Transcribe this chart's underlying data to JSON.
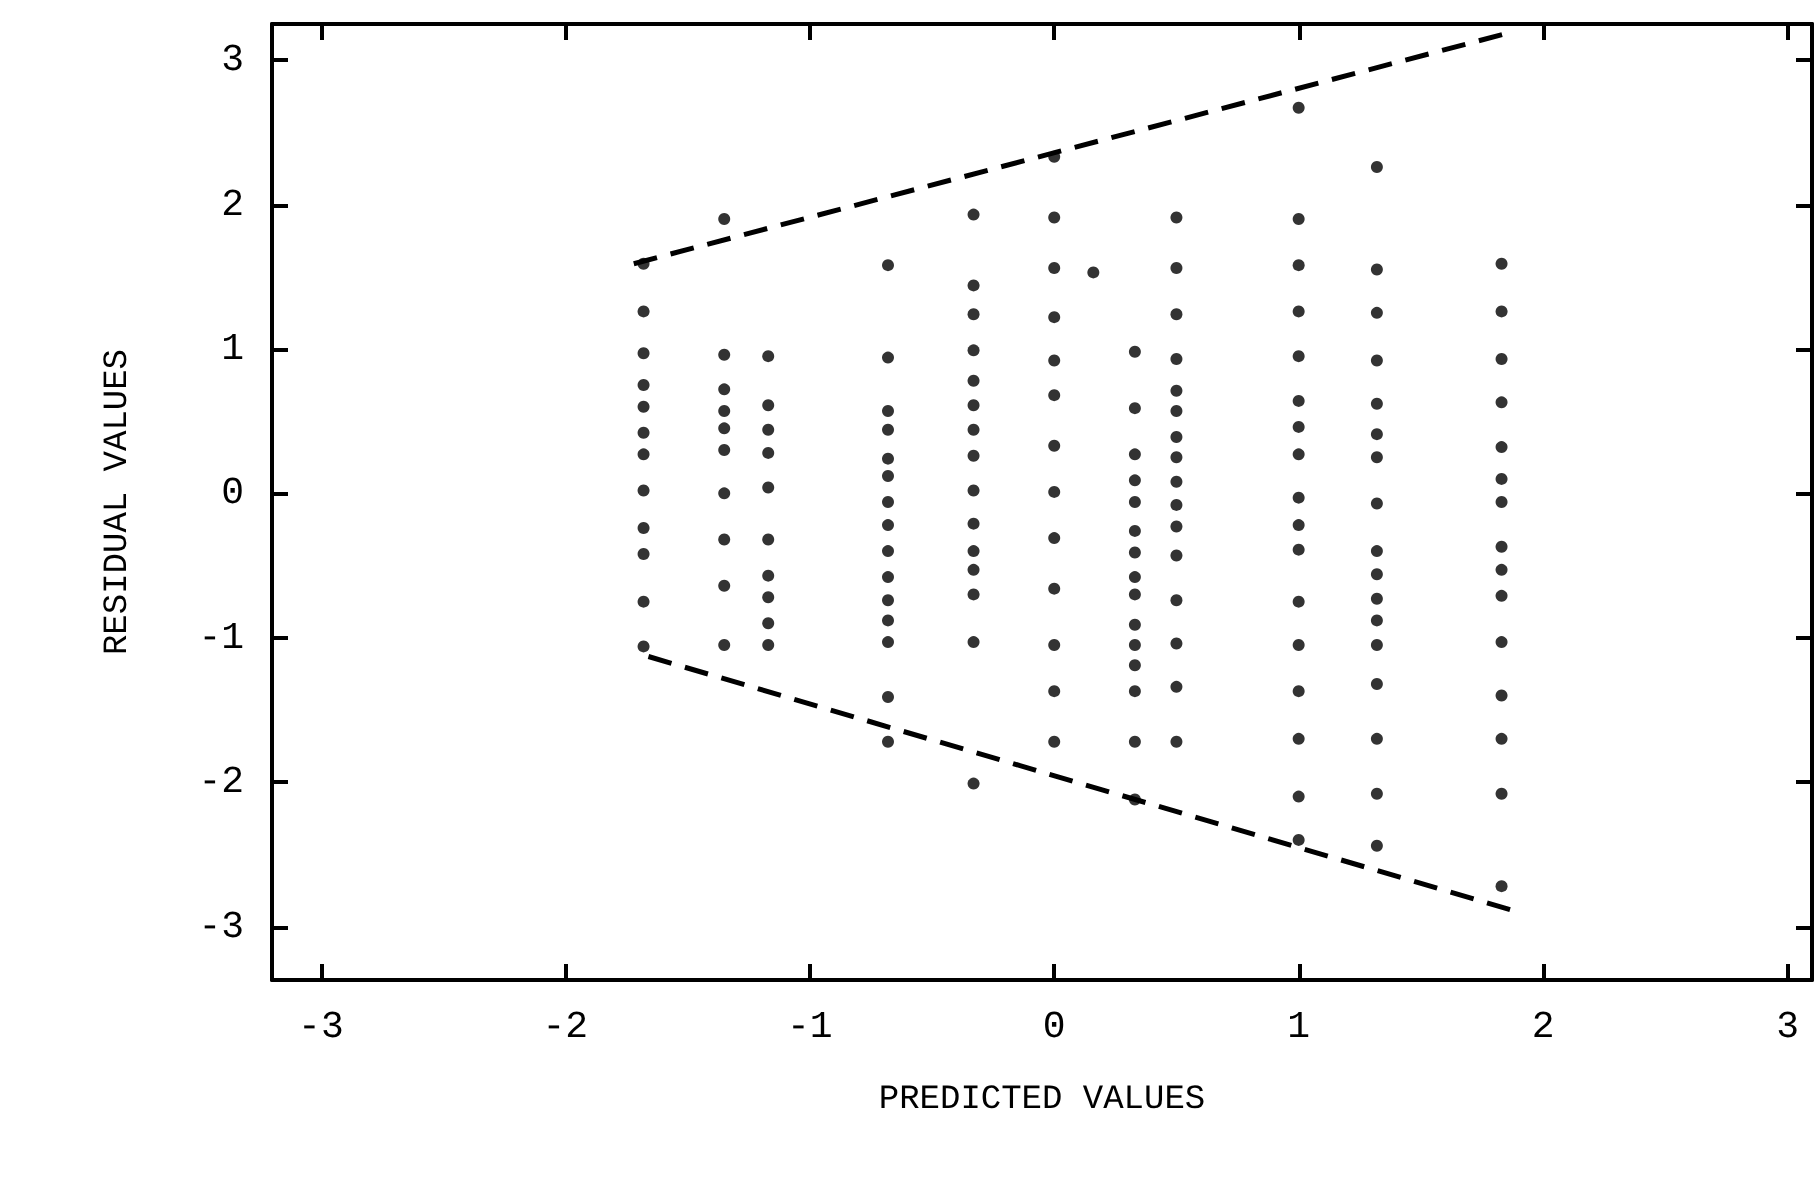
{
  "chart_data": {
    "type": "scatter",
    "xlabel": "PREDICTED VALUES",
    "ylabel": "RESIDUAL VALUES",
    "xlim": [
      -3.2,
      3.1
    ],
    "ylim": [
      -3.37,
      3.25
    ],
    "xticks": [
      -3,
      -2,
      -1,
      0,
      1,
      2,
      3
    ],
    "yticks": [
      -3,
      -2,
      -1,
      0,
      1,
      2,
      3
    ],
    "grid": false,
    "marker": "circle",
    "series": [
      {
        "color": "#000000",
        "x": [
          -1.68,
          -1.68,
          -1.68,
          -1.68,
          -1.68,
          -1.68,
          -1.68,
          -1.68,
          -1.68,
          -1.68,
          -1.68,
          -1.68
        ],
        "values": [
          1.59,
          1.26,
          0.97,
          0.75,
          0.6,
          0.42,
          0.27,
          0.02,
          -0.24,
          -0.42,
          -0.75,
          -1.06
        ]
      },
      {
        "color": "#000000",
        "x": [
          -1.35,
          -1.35,
          -1.35,
          -1.35,
          -1.35,
          -1.35,
          -1.35,
          -1.35,
          -1.35,
          -1.35
        ],
        "values": [
          1.9,
          0.96,
          0.72,
          0.57,
          0.45,
          0.3,
          0.0,
          -0.32,
          -0.64,
          -1.05
        ]
      },
      {
        "color": "#000000",
        "x": [
          -1.17,
          -1.17,
          -1.17,
          -1.17,
          -1.17,
          -1.17,
          -1.17,
          -1.17,
          -1.17,
          -1.17
        ],
        "values": [
          0.95,
          0.61,
          0.44,
          0.28,
          0.04,
          -0.32,
          -0.57,
          -0.72,
          -0.9,
          -1.05
        ]
      },
      {
        "color": "#000000",
        "x": [
          -0.68,
          -0.68,
          -0.68,
          -0.68,
          -0.68,
          -0.68,
          -0.68,
          -0.68,
          -0.68,
          -0.68,
          -0.68,
          -0.68,
          -0.68,
          -0.68,
          -0.68
        ],
        "values": [
          1.58,
          0.94,
          0.57,
          0.44,
          0.24,
          0.12,
          -0.06,
          -0.22,
          -0.4,
          -0.58,
          -0.74,
          -0.88,
          -1.03,
          -1.41,
          -1.72
        ]
      },
      {
        "color": "#000000",
        "x": [
          -0.33,
          -0.33,
          -0.33,
          -0.33,
          -0.33,
          -0.33,
          -0.33,
          -0.33,
          -0.33,
          -0.33,
          -0.33,
          -0.33,
          -0.33,
          -0.33,
          -0.33
        ],
        "values": [
          1.93,
          1.44,
          1.24,
          0.99,
          0.78,
          0.61,
          0.44,
          0.26,
          0.02,
          -0.21,
          -0.4,
          -0.53,
          -0.7,
          -1.03,
          -2.01
        ]
      },
      {
        "color": "#000000",
        "x": [
          0,
          0,
          0,
          0,
          0,
          0,
          0,
          0,
          0,
          0,
          0,
          0,
          0,
          0.16
        ],
        "values": [
          2.33,
          1.91,
          1.56,
          1.22,
          0.92,
          0.68,
          0.33,
          0.01,
          -0.31,
          -0.66,
          -1.05,
          -1.37,
          -1.72,
          1.53
        ]
      },
      {
        "color": "#000000",
        "x": [
          0.33,
          0.33,
          0.33,
          0.33,
          0.33,
          0.33,
          0.33,
          0.33,
          0.33,
          0.33,
          0.33,
          0.33,
          0.33,
          0.33,
          0.33
        ],
        "values": [
          0.98,
          0.59,
          0.27,
          0.09,
          -0.06,
          -0.26,
          -0.41,
          -0.58,
          -0.7,
          -0.91,
          -1.05,
          -1.19,
          -1.37,
          -1.72,
          -2.12
        ]
      },
      {
        "color": "#000000",
        "x": [
          0.5,
          0.5,
          0.5,
          0.5,
          0.5,
          0.5,
          0.5,
          0.5,
          0.5,
          0.5,
          0.5,
          0.5,
          0.5,
          0.5,
          0.5,
          0.5
        ],
        "values": [
          1.91,
          1.56,
          1.24,
          0.93,
          0.71,
          0.57,
          0.39,
          0.25,
          0.08,
          -0.08,
          -0.23,
          -0.43,
          -0.74,
          -1.04,
          -1.34,
          -1.72
        ]
      },
      {
        "color": "#000000",
        "x": [
          1.0,
          1.0,
          1.0,
          1.0,
          1.0,
          1.0,
          1.0,
          1.0,
          1.0,
          1.0,
          1.0,
          1.0,
          1.0,
          1.0,
          1.0,
          1.0,
          1.0
        ],
        "values": [
          2.67,
          1.9,
          1.58,
          1.26,
          0.95,
          0.64,
          0.46,
          0.27,
          -0.03,
          -0.22,
          -0.39,
          -0.75,
          -1.05,
          -1.37,
          -1.7,
          -2.1,
          -2.4
        ]
      },
      {
        "color": "#000000",
        "x": [
          1.32,
          1.32,
          1.32,
          1.32,
          1.32,
          1.32,
          1.32,
          1.32,
          1.32,
          1.32,
          1.32,
          1.32,
          1.32,
          1.32,
          1.32,
          1.32,
          1.32
        ],
        "values": [
          2.26,
          1.55,
          1.25,
          0.92,
          0.62,
          0.41,
          0.25,
          -0.07,
          -0.4,
          -0.56,
          -0.73,
          -0.88,
          -1.05,
          -1.32,
          -1.7,
          -2.08,
          -2.44
        ]
      },
      {
        "color": "#000000",
        "x": [
          1.83,
          1.83,
          1.83,
          1.83,
          1.83,
          1.83,
          1.83,
          1.83,
          1.83,
          1.83,
          1.83,
          1.83,
          1.83,
          1.83,
          1.83
        ],
        "values": [
          1.59,
          1.26,
          0.93,
          0.63,
          0.32,
          0.1,
          -0.06,
          -0.37,
          -0.53,
          -0.71,
          -1.03,
          -1.4,
          -1.7,
          -2.08,
          -2.72
        ]
      },
      {
        "type": "line",
        "line_style": "dashed",
        "marker": "none",
        "color": "#000000",
        "x": [
          -1.72,
          1.84
        ],
        "values": [
          1.59,
          3.18
        ]
      },
      {
        "type": "line",
        "line_style": "dashed",
        "marker": "none",
        "color": "#000000",
        "x": [
          -1.66,
          1.88
        ],
        "values": [
          -1.13,
          -2.89
        ]
      }
    ]
  }
}
